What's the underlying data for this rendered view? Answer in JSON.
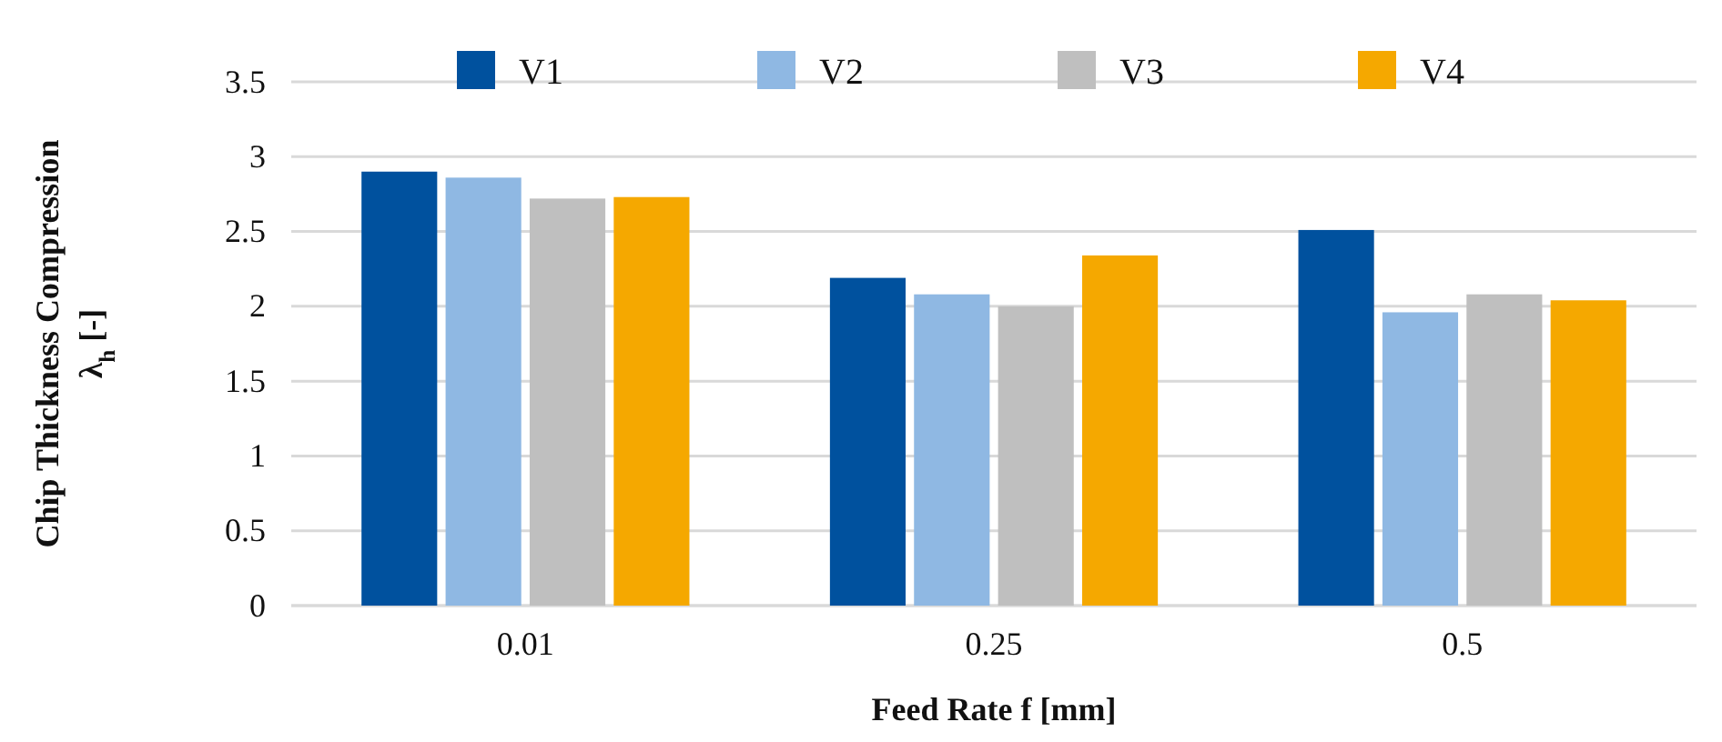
{
  "chart_data": {
    "type": "bar",
    "xlabel": "Feed Rate f [mm]",
    "ylabel": "Chip Thickness Compression\nλ$_{h}$ [-]",
    "categories": [
      "0.01",
      "0.25",
      "0.5"
    ],
    "series": [
      {
        "name": "V1",
        "color": "#00519e",
        "values": [
          2.9,
          2.19,
          2.51
        ]
      },
      {
        "name": "V2",
        "color": "#8fb8e3",
        "values": [
          2.86,
          2.08,
          1.96
        ]
      },
      {
        "name": "V3",
        "color": "#bfbfbf",
        "values": [
          2.72,
          2.0,
          2.08
        ]
      },
      {
        "name": "V4",
        "color": "#f5a800",
        "values": [
          2.73,
          2.34,
          2.04
        ]
      }
    ],
    "ylim": [
      0,
      3.5
    ],
    "yticks": [
      0,
      0.5,
      1,
      1.5,
      2,
      2.5,
      3,
      3.5
    ],
    "grid": "y",
    "legend": "top"
  }
}
